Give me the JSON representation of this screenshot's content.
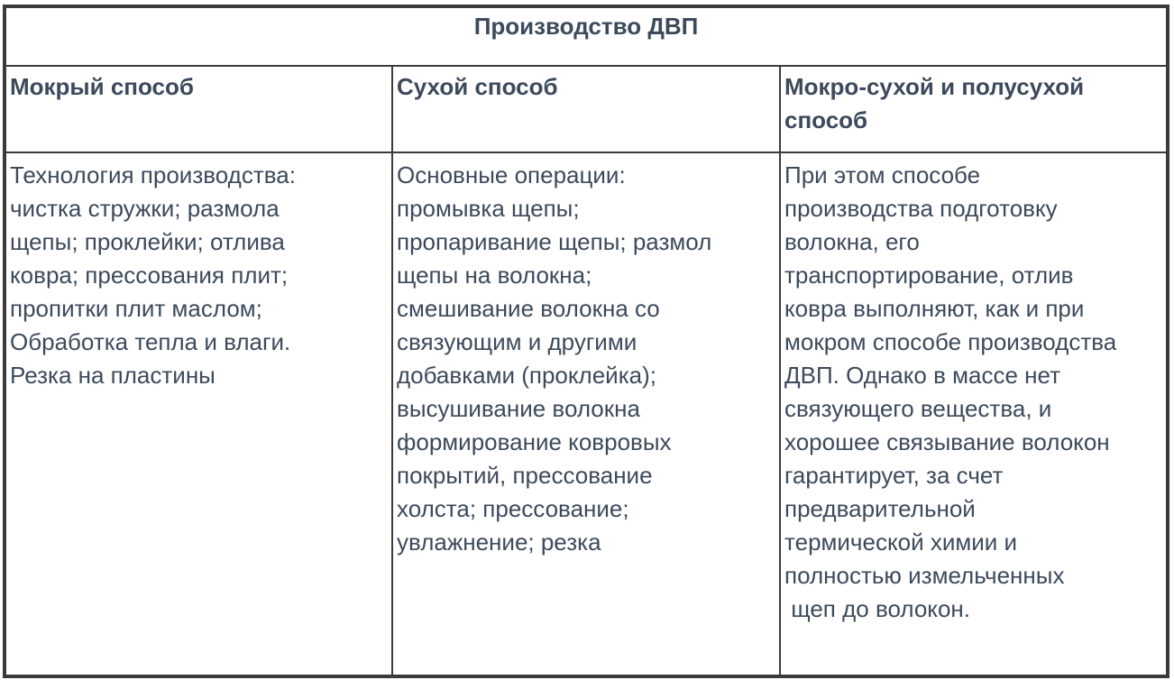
{
  "table": {
    "title": "Производство ДВП",
    "columns": [
      {
        "header": "Мокрый способ",
        "body": "Технология производства:\nчистка стружки; размола\nщепы; проклейки; отлива\nковра; прессования плит;\nпропитки плит маслом;\nОбработка тепла и влаги.\nРезка на пластины"
      },
      {
        "header": "Сухой способ",
        "body": "Основные операции:\nпромывка щепы;\nпропаривание щепы; размол\nщепы на волокна;\nсмешивание волокна со\nсвязующим и другими\nдобавками (проклейка);\nвысушивание волокна\nформирование ковровых\nпокрытий, прессование\nхолста; прессование;\nувлажнение; резка"
      },
      {
        "header": "Мокро-сухой и полусухой\nспособ",
        "body": "При этом способе\nпроизводства подготовку\nволокна, его\nтранспортирование, отлив\nковра выполняют, как и при\nмокром способе производства\nДВП. Однако в массе нет\nсвязующего вещества, и\nхорошее связывание волокон\nгарантирует, за счет\nпредварительной\nтермической химии и\nполностью измельченных\n щеп до волокон."
      }
    ],
    "colors": {
      "text": "#3d4a5c",
      "border": "#3b3b3b",
      "background": "#ffffff"
    }
  }
}
